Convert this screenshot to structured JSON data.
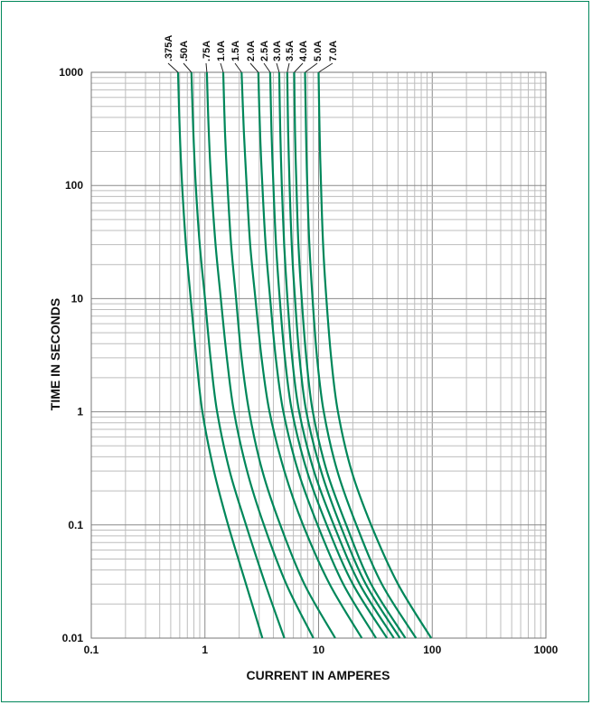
{
  "chart_data": {
    "type": "line",
    "title": "",
    "xlabel": "CURRENT IN AMPERES",
    "ylabel": "TIME IN SECONDS",
    "xscale": "log",
    "yscale": "log",
    "xlim": [
      0.1,
      1000
    ],
    "ylim": [
      0.01,
      1000
    ],
    "x_ticks": [
      "0.1",
      "1",
      "10",
      "100",
      "1000"
    ],
    "y_ticks": [
      "0.01",
      "0.1",
      "1",
      "10",
      "100",
      "1000"
    ],
    "grid": true,
    "line_color": "#00875a",
    "series": [
      {
        "name": ".375A",
        "points": [
          [
            0.58,
            1000
          ],
          [
            0.6,
            300
          ],
          [
            0.63,
            100
          ],
          [
            0.68,
            30
          ],
          [
            0.75,
            10
          ],
          [
            0.84,
            3
          ],
          [
            0.95,
            1
          ],
          [
            1.2,
            0.3
          ],
          [
            1.6,
            0.1
          ],
          [
            2.3,
            0.03
          ],
          [
            3.2,
            0.01
          ]
        ]
      },
      {
        "name": ".50A",
        "points": [
          [
            0.76,
            1000
          ],
          [
            0.79,
            300
          ],
          [
            0.83,
            100
          ],
          [
            0.9,
            30
          ],
          [
            1.0,
            10
          ],
          [
            1.12,
            3
          ],
          [
            1.28,
            1
          ],
          [
            1.65,
            0.3
          ],
          [
            2.3,
            0.1
          ],
          [
            3.4,
            0.03
          ],
          [
            5.0,
            0.01
          ]
        ]
      },
      {
        "name": ".75A",
        "points": [
          [
            1.04,
            1000
          ],
          [
            1.08,
            300
          ],
          [
            1.14,
            100
          ],
          [
            1.24,
            30
          ],
          [
            1.38,
            10
          ],
          [
            1.56,
            3
          ],
          [
            1.8,
            1
          ],
          [
            2.35,
            0.3
          ],
          [
            3.3,
            0.1
          ],
          [
            5.2,
            0.03
          ],
          [
            9.0,
            0.01
          ]
        ]
      },
      {
        "name": "1.0A",
        "points": [
          [
            1.45,
            1000
          ],
          [
            1.5,
            300
          ],
          [
            1.58,
            100
          ],
          [
            1.7,
            30
          ],
          [
            1.88,
            10
          ],
          [
            2.1,
            3
          ],
          [
            2.45,
            1
          ],
          [
            3.2,
            0.3
          ],
          [
            4.6,
            0.1
          ],
          [
            7.5,
            0.03
          ],
          [
            14,
            0.01
          ]
        ]
      },
      {
        "name": "1.5A",
        "points": [
          [
            2.1,
            1000
          ],
          [
            2.2,
            300
          ],
          [
            2.33,
            100
          ],
          [
            2.5,
            30
          ],
          [
            2.78,
            10
          ],
          [
            3.15,
            3
          ],
          [
            3.7,
            1
          ],
          [
            5.0,
            0.3
          ],
          [
            7.3,
            0.1
          ],
          [
            12.5,
            0.03
          ],
          [
            24,
            0.01
          ]
        ]
      },
      {
        "name": "2.0A",
        "points": [
          [
            2.95,
            1000
          ],
          [
            3.05,
            300
          ],
          [
            3.2,
            100
          ],
          [
            3.42,
            30
          ],
          [
            3.75,
            10
          ],
          [
            4.2,
            3
          ],
          [
            4.9,
            1
          ],
          [
            6.6,
            0.3
          ],
          [
            9.8,
            0.1
          ],
          [
            16.5,
            0.03
          ],
          [
            32,
            0.01
          ]
        ]
      },
      {
        "name": "2.5A",
        "points": [
          [
            3.75,
            1000
          ],
          [
            3.85,
            300
          ],
          [
            4.0,
            100
          ],
          [
            4.22,
            30
          ],
          [
            4.55,
            10
          ],
          [
            5.05,
            3
          ],
          [
            5.85,
            1
          ],
          [
            7.9,
            0.3
          ],
          [
            11.8,
            0.1
          ],
          [
            20,
            0.03
          ],
          [
            40,
            0.01
          ]
        ]
      },
      {
        "name": "3.0A",
        "points": [
          [
            4.5,
            1000
          ],
          [
            4.6,
            300
          ],
          [
            4.75,
            100
          ],
          [
            4.98,
            30
          ],
          [
            5.32,
            10
          ],
          [
            5.85,
            3
          ],
          [
            6.75,
            1
          ],
          [
            9.1,
            0.3
          ],
          [
            13.6,
            0.1
          ],
          [
            23,
            0.03
          ],
          [
            46,
            0.01
          ]
        ]
      },
      {
        "name": "3.5A",
        "points": [
          [
            5.3,
            1000
          ],
          [
            5.4,
            300
          ],
          [
            5.56,
            100
          ],
          [
            5.8,
            30
          ],
          [
            6.2,
            10
          ],
          [
            6.8,
            3
          ],
          [
            7.8,
            1
          ],
          [
            10.5,
            0.3
          ],
          [
            15.5,
            0.1
          ],
          [
            26,
            0.03
          ],
          [
            52,
            0.01
          ]
        ]
      },
      {
        "name": "4.0A",
        "points": [
          [
            6.1,
            1000
          ],
          [
            6.2,
            300
          ],
          [
            6.38,
            100
          ],
          [
            6.65,
            30
          ],
          [
            7.1,
            10
          ],
          [
            7.8,
            3
          ],
          [
            8.9,
            1
          ],
          [
            11.8,
            0.3
          ],
          [
            17.5,
            0.1
          ],
          [
            29,
            0.03
          ],
          [
            58,
            0.01
          ]
        ]
      },
      {
        "name": "5.0A",
        "points": [
          [
            7.6,
            1000
          ],
          [
            7.75,
            300
          ],
          [
            7.95,
            100
          ],
          [
            8.3,
            30
          ],
          [
            8.85,
            10
          ],
          [
            9.7,
            3
          ],
          [
            11.1,
            1
          ],
          [
            14.6,
            0.3
          ],
          [
            21.5,
            0.1
          ],
          [
            36,
            0.03
          ],
          [
            72,
            0.01
          ]
        ]
      },
      {
        "name": "7.0A",
        "points": [
          [
            10,
            1000
          ],
          [
            10.2,
            300
          ],
          [
            10.5,
            100
          ],
          [
            10.95,
            30
          ],
          [
            11.7,
            10
          ],
          [
            12.9,
            3
          ],
          [
            14.8,
            1
          ],
          [
            19.5,
            0.3
          ],
          [
            29,
            0.1
          ],
          [
            50,
            0.03
          ],
          [
            98,
            0.01
          ]
        ]
      }
    ]
  }
}
